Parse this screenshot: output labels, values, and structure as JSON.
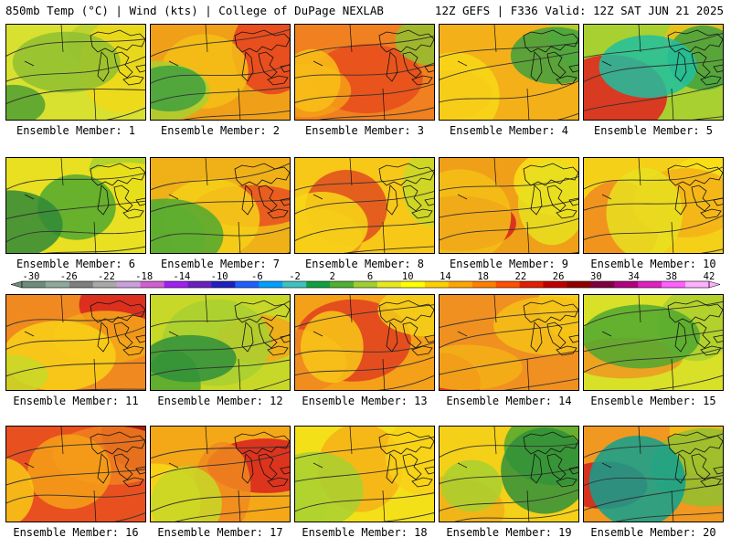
{
  "header": {
    "left": "850mb Temp (°C) | Wind (kts) | College of DuPage NEXLAB",
    "right": "12Z GEFS | F336 Valid: 12Z SAT JUN 21 2025"
  },
  "legend": {
    "ticks": [
      "-30",
      "-26",
      "-22",
      "-18",
      "-14",
      "-10",
      "-6",
      "-2",
      "2",
      "6",
      "10",
      "14",
      "18",
      "22",
      "26",
      "30",
      "34",
      "38",
      "42"
    ],
    "colors": [
      "#6d8c7d",
      "#8fa89c",
      "#7f7f7f",
      "#a8a8a8",
      "#c9a0dc",
      "#d05fd0",
      "#a020f0",
      "#6a1fbf",
      "#2020c0",
      "#2060ff",
      "#00a0ff",
      "#40c0c0",
      "#10a040",
      "#50b030",
      "#a0d030",
      "#e8e820",
      "#ffff00",
      "#ffd000",
      "#ffa500",
      "#ff7f00",
      "#ff4f00",
      "#e02000",
      "#c00000",
      "#900000",
      "#800040",
      "#b00080",
      "#e020c0",
      "#ff60ff",
      "#ffb0ff"
    ]
  },
  "panel_label_prefix": "Ensemble Member:",
  "members": [
    {
      "id": 1,
      "label": "Ensemble Member: 1",
      "colors": [
        "#d8e030",
        "#b8d030",
        "#f0d818",
        "#90c030",
        "#50a030"
      ]
    },
    {
      "id": 2,
      "label": "Ensemble Member: 2",
      "colors": [
        "#f0a018",
        "#e84020",
        "#f4c018",
        "#a8d030",
        "#40a040"
      ]
    },
    {
      "id": 3,
      "label": "Ensemble Member: 3",
      "colors": [
        "#f08020",
        "#e84c1c",
        "#f4a018",
        "#f8c018",
        "#90c030"
      ]
    },
    {
      "id": 4,
      "label": "Ensemble Member: 4",
      "colors": [
        "#f4b018",
        "#f08a20",
        "#f8d818",
        "#a8d030",
        "#40a040"
      ]
    },
    {
      "id": 5,
      "label": "Ensemble Member: 5",
      "colors": [
        "#a8d030",
        "#e02020",
        "#f0c018",
        "#40a040",
        "#20c0a0"
      ]
    },
    {
      "id": 6,
      "label": "Ensemble Member: 6",
      "colors": [
        "#e8e020",
        "#a8d030",
        "#f0e018",
        "#50a830",
        "#308a38"
      ]
    },
    {
      "id": 7,
      "label": "Ensemble Member: 7",
      "colors": [
        "#f0b018",
        "#e85020",
        "#f4d018",
        "#a8d030",
        "#50a830"
      ]
    },
    {
      "id": 8,
      "label": "Ensemble Member: 8",
      "colors": [
        "#f8c818",
        "#e04c20",
        "#f09020",
        "#f8d818",
        "#c8d828"
      ]
    },
    {
      "id": 9,
      "label": "Ensemble Member: 9",
      "colors": [
        "#f0a018",
        "#d82020",
        "#f4c018",
        "#f8e018",
        "#e8e020"
      ]
    },
    {
      "id": 10,
      "label": "Ensemble Member: 10",
      "colors": [
        "#f4d018",
        "#f08a20",
        "#f8e018",
        "#f4b018",
        "#e8e020"
      ]
    },
    {
      "id": 11,
      "label": "Ensemble Member: 11",
      "colors": [
        "#f08a20",
        "#d82020",
        "#f4a818",
        "#f8d018",
        "#c8d828"
      ]
    },
    {
      "id": 12,
      "label": "Ensemble Member: 12",
      "colors": [
        "#c8d828",
        "#f4a818",
        "#a8d030",
        "#50a830",
        "#30903a"
      ]
    },
    {
      "id": 13,
      "label": "Ensemble Member: 13",
      "colors": [
        "#f4a018",
        "#e04020",
        "#f08a20",
        "#f8c818",
        "#f4d018"
      ]
    },
    {
      "id": 14,
      "label": "Ensemble Member: 14",
      "colors": [
        "#f09020",
        "#e02c20",
        "#f4b018",
        "#f8d818",
        "#f4c018"
      ]
    },
    {
      "id": 15,
      "label": "Ensemble Member: 15",
      "colors": [
        "#d8e028",
        "#f09820",
        "#f4d018",
        "#a8d030",
        "#50a830"
      ]
    },
    {
      "id": 16,
      "label": "Ensemble Member: 16",
      "colors": [
        "#e85020",
        "#a01010",
        "#f08020",
        "#f4a018",
        "#f8c818"
      ]
    },
    {
      "id": 17,
      "label": "Ensemble Member: 17",
      "colors": [
        "#f4a818",
        "#d82020",
        "#f08a20",
        "#f8d818",
        "#c8d828"
      ]
    },
    {
      "id": 18,
      "label": "Ensemble Member: 18",
      "colors": [
        "#f4e018",
        "#f4b018",
        "#d8e028",
        "#a8d030",
        "#f8d018"
      ]
    },
    {
      "id": 19,
      "label": "Ensemble Member: 19",
      "colors": [
        "#f4d018",
        "#f0b018",
        "#a8d030",
        "#50a830",
        "#30903a"
      ]
    },
    {
      "id": 20,
      "label": "Ensemble Member: 20",
      "colors": [
        "#f09820",
        "#d02020",
        "#f4c018",
        "#90c030",
        "#10a090"
      ]
    }
  ]
}
